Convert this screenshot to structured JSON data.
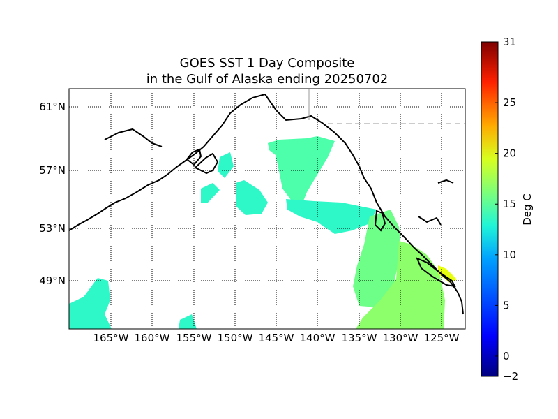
{
  "title": {
    "line1": "GOES SST 1 Day Composite",
    "line2": "in the Gulf of Alaska ending 20250702"
  },
  "map": {
    "lat_labels": [
      "61°N",
      "57°N",
      "53°N",
      "49°N"
    ],
    "lon_labels": [
      "165°W",
      "160°W",
      "155°W",
      "150°W",
      "145°W",
      "140°W",
      "135°W",
      "130°W",
      "125°W"
    ],
    "gridlines": "dotted",
    "coastline_color": "#000000",
    "border_color": "#999999"
  },
  "colorbar": {
    "label": "Deg C",
    "min": -2,
    "max": 31,
    "ticks": [
      "31",
      "25",
      "20",
      "15",
      "10",
      "5",
      "0",
      "−2"
    ],
    "tick_values": [
      31,
      25,
      20,
      15,
      10,
      5,
      0,
      -2
    ],
    "colormap": "jet",
    "stops": [
      "#00007f",
      "#0000ff",
      "#00a0ff",
      "#1ff5d8",
      "#7dff7a",
      "#d8ff1f",
      "#ffaa00",
      "#ff2000",
      "#7f0000"
    ]
  }
}
